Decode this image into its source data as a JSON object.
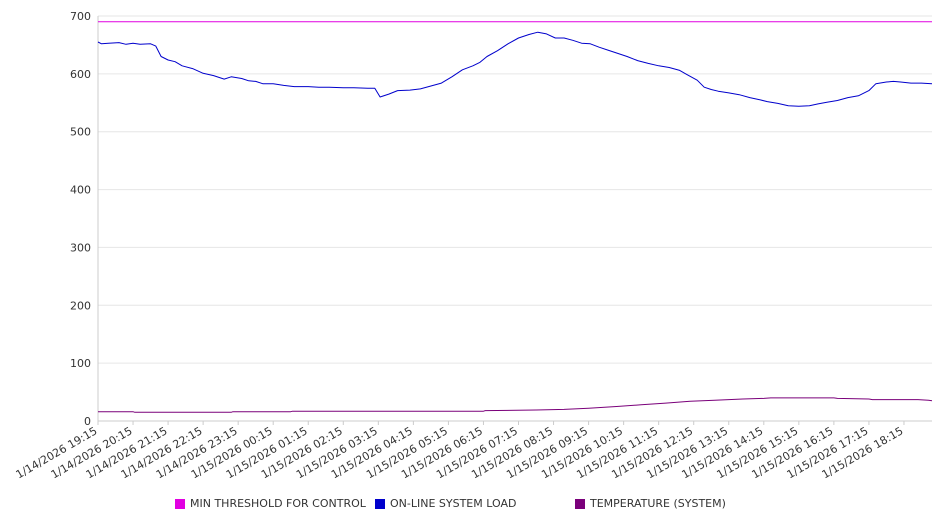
{
  "chart_data": {
    "type": "line",
    "ylim": [
      0,
      700
    ],
    "y_ticks": [
      "0",
      "100",
      "200",
      "300",
      "400",
      "500",
      "600",
      "700"
    ],
    "x_tick_labels": [
      "1/14/2026 19:15",
      "1/14/2026 20:15",
      "1/14/2026 21:15",
      "1/14/2026 22:15",
      "1/14/2026 23:15",
      "1/15/2026 00:15",
      "1/15/2026 01:15",
      "1/15/2026 02:15",
      "1/15/2026 03:15",
      "1/15/2026 04:15",
      "1/15/2026 05:15",
      "1/15/2026 06:15",
      "1/15/2026 07:15",
      "1/15/2026 08:15",
      "1/15/2026 09:15",
      "1/15/2026 10:15",
      "1/15/2026 11:15",
      "1/15/2026 12:15",
      "1/15/2026 13:15",
      "1/15/2026 14:15",
      "1/15/2026 15:15",
      "1/15/2026 16:15",
      "1/15/2026 17:15",
      "1/15/2026 18:15"
    ],
    "grid": true,
    "legend_position": "bottom",
    "series": [
      {
        "name": "MIN THRESHOLD FOR CONTROL",
        "color": "#e100e1",
        "points": [
          [
            0,
            690
          ],
          [
            23.8,
            690
          ]
        ]
      },
      {
        "name": "ON-LINE SYSTEM LOAD",
        "color": "#0000cc",
        "points": [
          [
            0,
            655
          ],
          [
            0.1,
            652
          ],
          [
            0.3,
            653
          ],
          [
            0.6,
            654
          ],
          [
            0.8,
            651
          ],
          [
            1.0,
            653
          ],
          [
            1.2,
            651
          ],
          [
            1.5,
            652
          ],
          [
            1.65,
            648
          ],
          [
            1.8,
            630
          ],
          [
            2.0,
            624
          ],
          [
            2.2,
            621
          ],
          [
            2.4,
            614
          ],
          [
            2.7,
            609
          ],
          [
            3.0,
            601
          ],
          [
            3.3,
            597
          ],
          [
            3.6,
            591
          ],
          [
            3.8,
            595
          ],
          [
            4.1,
            592
          ],
          [
            4.3,
            588
          ],
          [
            4.5,
            587
          ],
          [
            4.7,
            583
          ],
          [
            5.0,
            583
          ],
          [
            5.3,
            580
          ],
          [
            5.6,
            578
          ],
          [
            6.0,
            578
          ],
          [
            6.3,
            577
          ],
          [
            6.6,
            577
          ],
          [
            7.0,
            576
          ],
          [
            7.3,
            576
          ],
          [
            7.7,
            575
          ],
          [
            7.9,
            575
          ],
          [
            8.05,
            560
          ],
          [
            8.3,
            565
          ],
          [
            8.55,
            571
          ],
          [
            8.9,
            572
          ],
          [
            9.2,
            574
          ],
          [
            9.5,
            579
          ],
          [
            9.8,
            584
          ],
          [
            10.1,
            595
          ],
          [
            10.4,
            607
          ],
          [
            10.7,
            614
          ],
          [
            10.9,
            620
          ],
          [
            11.1,
            630
          ],
          [
            11.4,
            640
          ],
          [
            11.7,
            652
          ],
          [
            12.0,
            662
          ],
          [
            12.3,
            668
          ],
          [
            12.55,
            672
          ],
          [
            12.8,
            669
          ],
          [
            13.05,
            662
          ],
          [
            13.3,
            662
          ],
          [
            13.55,
            658
          ],
          [
            13.8,
            653
          ],
          [
            14.05,
            652
          ],
          [
            14.3,
            646
          ],
          [
            14.55,
            641
          ],
          [
            14.8,
            636
          ],
          [
            15.1,
            630
          ],
          [
            15.4,
            623
          ],
          [
            15.7,
            618
          ],
          [
            16.0,
            614
          ],
          [
            16.3,
            611
          ],
          [
            16.6,
            606
          ],
          [
            16.8,
            599
          ],
          [
            17.1,
            589
          ],
          [
            17.3,
            577
          ],
          [
            17.5,
            573
          ],
          [
            17.7,
            570
          ],
          [
            18.0,
            567
          ],
          [
            18.3,
            564
          ],
          [
            18.6,
            559
          ],
          [
            18.9,
            555
          ],
          [
            19.1,
            552
          ],
          [
            19.4,
            549
          ],
          [
            19.7,
            545
          ],
          [
            20.0,
            544
          ],
          [
            20.3,
            545
          ],
          [
            20.55,
            548
          ],
          [
            20.8,
            551
          ],
          [
            21.1,
            554
          ],
          [
            21.4,
            559
          ],
          [
            21.7,
            562
          ],
          [
            22.0,
            571
          ],
          [
            22.2,
            583
          ],
          [
            22.5,
            586
          ],
          [
            22.7,
            587
          ],
          [
            22.9,
            586
          ],
          [
            23.2,
            584
          ],
          [
            23.5,
            584
          ],
          [
            23.8,
            583
          ]
        ]
      },
      {
        "name": "TEMPERATURE (SYSTEM)",
        "color": "#7a007a",
        "points": [
          [
            0,
            16
          ],
          [
            1.0,
            16
          ],
          [
            1.05,
            15
          ],
          [
            2.5,
            15
          ],
          [
            3.8,
            15
          ],
          [
            3.85,
            16
          ],
          [
            5.5,
            16
          ],
          [
            5.55,
            17
          ],
          [
            11.0,
            17
          ],
          [
            11.05,
            18
          ],
          [
            12.5,
            19
          ],
          [
            13.3,
            20
          ],
          [
            14.0,
            22
          ],
          [
            14.8,
            25
          ],
          [
            15.5,
            28
          ],
          [
            16.2,
            31
          ],
          [
            16.9,
            34
          ],
          [
            17.6,
            36
          ],
          [
            18.4,
            38
          ],
          [
            19.0,
            39
          ],
          [
            19.2,
            40
          ],
          [
            21.0,
            40
          ],
          [
            21.1,
            39
          ],
          [
            22.0,
            38
          ],
          [
            22.1,
            37
          ],
          [
            23.4,
            37
          ],
          [
            23.7,
            36
          ],
          [
            23.8,
            35
          ]
        ]
      }
    ]
  }
}
